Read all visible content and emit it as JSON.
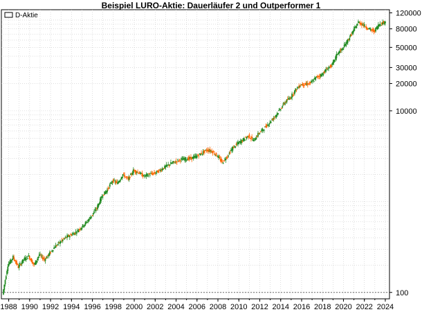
{
  "chart_data": {
    "type": "candlestick",
    "title": "Beispiel LURO-Aktie: Dauerläufer 2 und Outperformer 1",
    "xlabel": "",
    "ylabel": "",
    "y_scale": "log",
    "ylim": [
      85,
      130000
    ],
    "xlim": [
      1987.3,
      2024.4
    ],
    "grid": true,
    "legend_position": "top-left",
    "legend": [
      "D-Aktie"
    ],
    "x_ticks": [
      1988,
      1990,
      1992,
      1994,
      1996,
      1998,
      2000,
      2002,
      2004,
      2006,
      2008,
      2010,
      2012,
      2014,
      2016,
      2018,
      2020,
      2022,
      2024
    ],
    "y_ticks": [
      100,
      10000,
      20000,
      30000,
      50000,
      80000,
      120000
    ],
    "y_tick_labels": [
      "100",
      "10000",
      "20000",
      "30000",
      "50000",
      "80000",
      "120000"
    ],
    "reference_line": {
      "y": 100,
      "style": "dotted"
    },
    "colors": {
      "up": "#228b22",
      "down": "#ff6600",
      "reference": "#666666",
      "grid": "#c8c8c8"
    },
    "series": [
      {
        "name": "D-Aktie",
        "x": [
          1987.5,
          1988.0,
          1988.5,
          1989.0,
          1989.5,
          1990.0,
          1990.5,
          1991.0,
          1991.5,
          1992.0,
          1992.5,
          1993.0,
          1993.5,
          1994.0,
          1994.5,
          1995.0,
          1995.5,
          1996.0,
          1996.5,
          1997.0,
          1997.5,
          1998.0,
          1998.5,
          1999.0,
          1999.5,
          2000.0,
          2000.5,
          2001.0,
          2001.5,
          2002.0,
          2002.5,
          2003.0,
          2003.5,
          2004.0,
          2004.5,
          2005.0,
          2005.5,
          2006.0,
          2006.5,
          2007.0,
          2007.5,
          2008.0,
          2008.5,
          2009.0,
          2009.5,
          2010.0,
          2010.5,
          2011.0,
          2011.5,
          2012.0,
          2012.5,
          2013.0,
          2013.5,
          2014.0,
          2014.5,
          2015.0,
          2015.5,
          2016.0,
          2016.5,
          2017.0,
          2017.5,
          2018.0,
          2018.5,
          2019.0,
          2019.5,
          2020.0,
          2020.5,
          2021.0,
          2021.5,
          2022.0,
          2022.5,
          2023.0,
          2023.5,
          2024.0
        ],
        "values": [
          95,
          200,
          245,
          190,
          230,
          250,
          200,
          260,
          230,
          270,
          320,
          360,
          400,
          430,
          460,
          520,
          590,
          700,
          850,
          1150,
          1350,
          1700,
          1600,
          2000,
          1750,
          2200,
          2100,
          1900,
          2000,
          2050,
          2200,
          2400,
          2600,
          2750,
          2900,
          2950,
          3000,
          3150,
          3400,
          3700,
          3600,
          3200,
          2700,
          3200,
          3900,
          4400,
          4800,
          5300,
          4700,
          5700,
          6400,
          7400,
          8600,
          10300,
          12500,
          14000,
          17000,
          19500,
          19500,
          20500,
          23500,
          25000,
          29000,
          32000,
          43000,
          48000,
          60000,
          75000,
          95000,
          88000,
          80000,
          75000,
          90000,
          95000
        ]
      }
    ]
  }
}
